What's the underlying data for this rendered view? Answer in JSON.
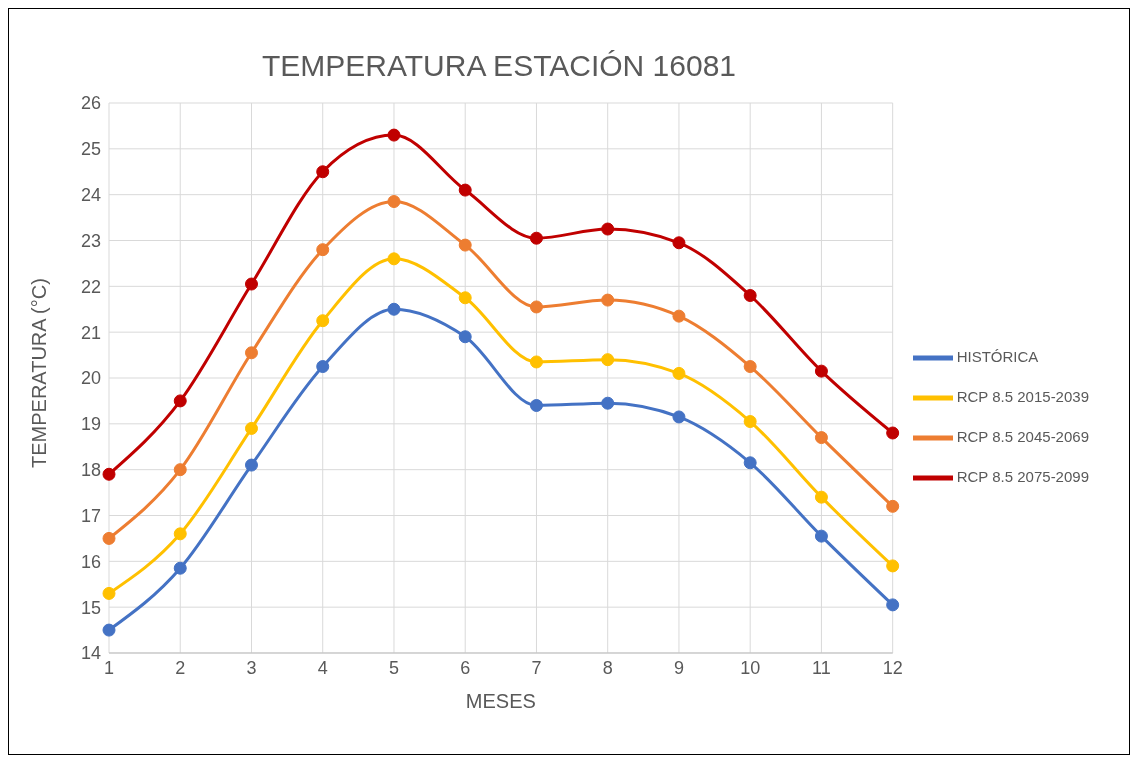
{
  "chart_data": {
    "type": "line",
    "title": "TEMPERATURA ESTACIÓN 16081",
    "xlabel": "MESES",
    "ylabel": "TEMPERATURA (°C)",
    "x": [
      1,
      2,
      3,
      4,
      5,
      6,
      7,
      8,
      9,
      10,
      11,
      12
    ],
    "series": [
      {
        "name": "HISTÓRICA",
        "color": "#4472c4",
        "values": [
          14.5,
          15.85,
          18.1,
          20.25,
          21.5,
          20.9,
          19.4,
          19.45,
          19.15,
          18.15,
          16.55,
          15.05
        ]
      },
      {
        "name": "RCP 8.5 2015-2039",
        "color": "#ffc000",
        "values": [
          15.3,
          16.6,
          18.9,
          21.25,
          22.6,
          21.75,
          20.35,
          20.4,
          20.1,
          19.05,
          17.4,
          15.9
        ]
      },
      {
        "name": "RCP 8.5 2045-2069",
        "color": "#ed7d31",
        "values": [
          16.5,
          18.0,
          20.55,
          22.8,
          23.85,
          22.9,
          21.55,
          21.7,
          21.35,
          20.25,
          18.7,
          17.2
        ]
      },
      {
        "name": "RCP 8.5 2075-2099",
        "color": "#c00000",
        "values": [
          17.9,
          19.5,
          22.05,
          24.5,
          25.3,
          24.1,
          23.05,
          23.25,
          22.95,
          21.8,
          20.15,
          18.8
        ]
      }
    ],
    "xlim": [
      1,
      12
    ],
    "xticks": [
      1,
      2,
      3,
      4,
      5,
      6,
      7,
      8,
      9,
      10,
      11,
      12
    ],
    "ylim": [
      14,
      26
    ],
    "yticks": [
      14,
      15,
      16,
      17,
      18,
      19,
      20,
      21,
      22,
      23,
      24,
      25,
      26
    ],
    "grid": true,
    "legend": "right",
    "marker": "circle",
    "line_style": "solid"
  }
}
